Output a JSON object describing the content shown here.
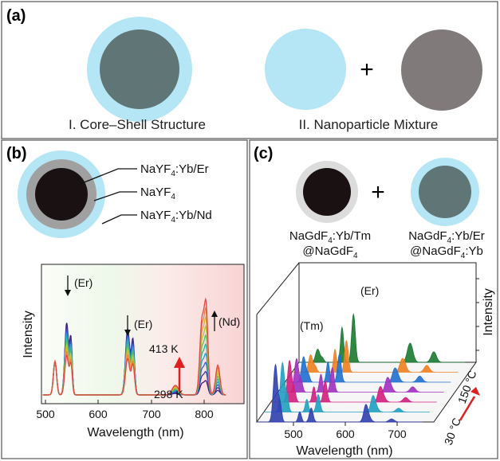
{
  "panel_a": {
    "label": "(a)",
    "caption_core_shell": "I. Core–Shell Structure",
    "caption_mixture": "II. Nanoparticle Mixture",
    "plus": "+"
  },
  "panel_b": {
    "label": "(b)",
    "layers": [
      {
        "base": "NaYF",
        "sub": "4",
        "suffix": ":Yb/Er"
      },
      {
        "base": "NaYF",
        "sub": "4",
        "suffix": ""
      },
      {
        "base": "NaYF",
        "sub": "4",
        "suffix": ":Yb/Nd"
      }
    ],
    "chart": {
      "ylabel": "Intensity",
      "xlabel": "Wavelength (nm)",
      "xticks": [
        "500",
        "600",
        "700",
        "800"
      ],
      "annotations": {
        "er1": "(Er)",
        "er2": "(Er)",
        "nd": "(Nd)",
        "t_high": "413 K",
        "t_low": "298 K"
      }
    }
  },
  "panel_c": {
    "label": "(c)",
    "plus": "+",
    "particle_left": {
      "line1_base": "NaGdF",
      "line1_sub": "4",
      "line1_suffix": ":Yb/Tm",
      "line2_base": "@NaGdF",
      "line2_sub": "4",
      "line2_suffix": ""
    },
    "particle_right": {
      "line1_base": "NaGdF",
      "line1_sub": "4",
      "line1_suffix": ":Yb/Er",
      "line2_base": "@NaGdF",
      "line2_sub": "4",
      "line2_suffix": ":Yb"
    },
    "chart": {
      "ylabel": "Intensity",
      "xlabel": "Wavelength (nm)",
      "xticks": [
        "500",
        "600",
        "700"
      ],
      "annotations": {
        "tm": "(Tm)",
        "er": "(Er)",
        "t_high": "150 °C",
        "t_low": "30 °C"
      }
    }
  },
  "colors": {
    "shell_blue": "#b4e6f6",
    "core_slate": "#5f7576",
    "core_black": "#1a1113",
    "shell_gray": "#a0a0a0",
    "particle_gray": "#807b7a",
    "arrow_red": "#e02020"
  }
}
